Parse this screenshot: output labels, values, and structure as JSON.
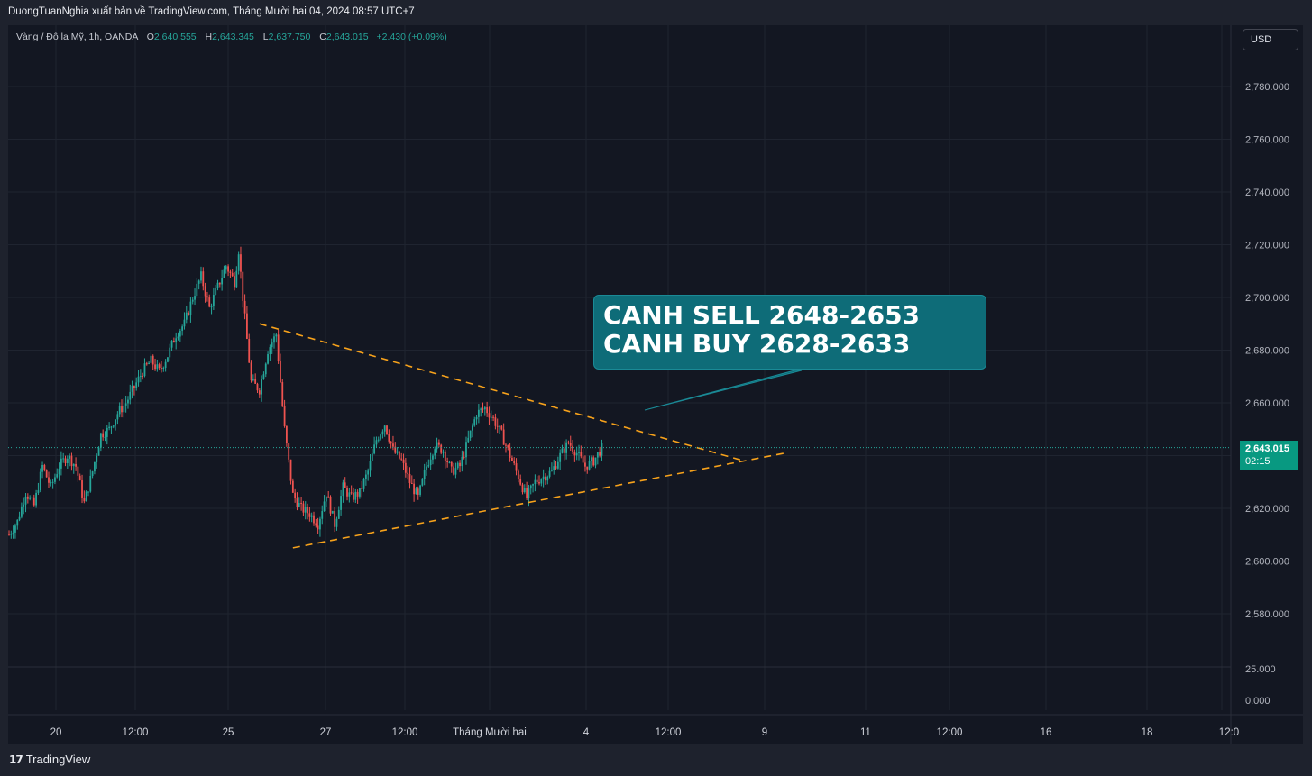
{
  "publisher_line": "DuongTuanNghia xuất bản về TradingView.com, Tháng Mười hai 04, 2024 08:57 UTC+7",
  "legend": {
    "symbol": "Vàng / Đô la Mỹ, 1h, OANDA",
    "open_label": "O",
    "open": "2,640.555",
    "high_label": "H",
    "high": "2,643.345",
    "low_label": "L",
    "low": "2,637.750",
    "close_label": "C",
    "close": "2,643.015",
    "change": "+2.430 (+0.09%)"
  },
  "currency_button": "USD",
  "annotation": {
    "line1": "CANH SELL 2648-2653",
    "line2": "CANH BUY 2628-2633"
  },
  "price_badge": {
    "price": "2,643.015",
    "countdown": "02:15"
  },
  "footer_logo": "TradingView",
  "colors": {
    "background": "#131722",
    "up": "#26a69a",
    "down": "#ef5350",
    "trendline": "#f7a21b",
    "annotation_bg": "#0e6c78",
    "price_badge": "#089981",
    "grid": "#1f2430"
  },
  "chart_data": {
    "type": "candlestick",
    "instrument": "Vàng / Đô la Mỹ",
    "timeframe": "1h",
    "ylim": [
      2565,
      2795
    ],
    "y_ticks": [
      2780,
      2760,
      2740,
      2720,
      2700,
      2680,
      2660,
      2640,
      2620,
      2600,
      2580
    ],
    "y_tick_labels": [
      "2,780.000",
      "2,760.000",
      "2,740.000",
      "2,720.000",
      "2,700.000",
      "2,680.000",
      "2,660.000",
      "2,640.000",
      "2,620.000",
      "2,600.000",
      "2,580.000"
    ],
    "volume_ticks": [
      "25.000",
      "0.000"
    ],
    "x_tick_labels": [
      "20",
      "12:00",
      "25",
      "27",
      "12:00",
      "Tháng Mười hai",
      "4",
      "12:00",
      "9",
      "11",
      "12:00",
      "16",
      "18",
      "12:0"
    ],
    "last_price": 2643.015,
    "close_path": [
      [
        0,
        2610
      ],
      [
        4,
        2615
      ],
      [
        8,
        2626
      ],
      [
        12,
        2621
      ],
      [
        16,
        2636
      ],
      [
        20,
        2628
      ],
      [
        24,
        2636
      ],
      [
        28,
        2640
      ],
      [
        32,
        2636
      ],
      [
        36,
        2622
      ],
      [
        40,
        2634
      ],
      [
        44,
        2648
      ],
      [
        48,
        2650
      ],
      [
        52,
        2656
      ],
      [
        56,
        2660
      ],
      [
        60,
        2666
      ],
      [
        64,
        2672
      ],
      [
        68,
        2676
      ],
      [
        72,
        2672
      ],
      [
        76,
        2678
      ],
      [
        80,
        2686
      ],
      [
        84,
        2690
      ],
      [
        88,
        2700
      ],
      [
        92,
        2708
      ],
      [
        96,
        2696
      ],
      [
        100,
        2704
      ],
      [
        104,
        2712
      ],
      [
        108,
        2706
      ],
      [
        110,
        2718
      ],
      [
        112,
        2700
      ],
      [
        116,
        2668
      ],
      [
        120,
        2665
      ],
      [
        124,
        2680
      ],
      [
        128,
        2686
      ],
      [
        132,
        2650
      ],
      [
        136,
        2625
      ],
      [
        140,
        2620
      ],
      [
        144,
        2618
      ],
      [
        148,
        2614
      ],
      [
        152,
        2626
      ],
      [
        156,
        2614
      ],
      [
        160,
        2628
      ],
      [
        164,
        2624
      ],
      [
        168,
        2626
      ],
      [
        172,
        2634
      ],
      [
        176,
        2646
      ],
      [
        180,
        2652
      ],
      [
        184,
        2642
      ],
      [
        188,
        2638
      ],
      [
        192,
        2630
      ],
      [
        196,
        2624
      ],
      [
        200,
        2636
      ],
      [
        204,
        2644
      ],
      [
        208,
        2642
      ],
      [
        212,
        2634
      ],
      [
        216,
        2636
      ],
      [
        220,
        2646
      ],
      [
        224,
        2656
      ],
      [
        228,
        2658
      ],
      [
        232,
        2654
      ],
      [
        236,
        2648
      ],
      [
        240,
        2640
      ],
      [
        244,
        2632
      ],
      [
        248,
        2624
      ],
      [
        252,
        2630
      ],
      [
        256,
        2632
      ],
      [
        260,
        2634
      ],
      [
        264,
        2640
      ],
      [
        268,
        2645
      ],
      [
        272,
        2641
      ],
      [
        276,
        2636
      ],
      [
        280,
        2638
      ],
      [
        284,
        2643
      ]
    ],
    "trendlines": [
      {
        "x1": 120,
        "y1": 2690,
        "x2": 352,
        "y2": 2638,
        "style": "dashed"
      },
      {
        "x1": 136,
        "y1": 2605,
        "x2": 372,
        "y2": 2641,
        "style": "dashed"
      }
    ]
  }
}
